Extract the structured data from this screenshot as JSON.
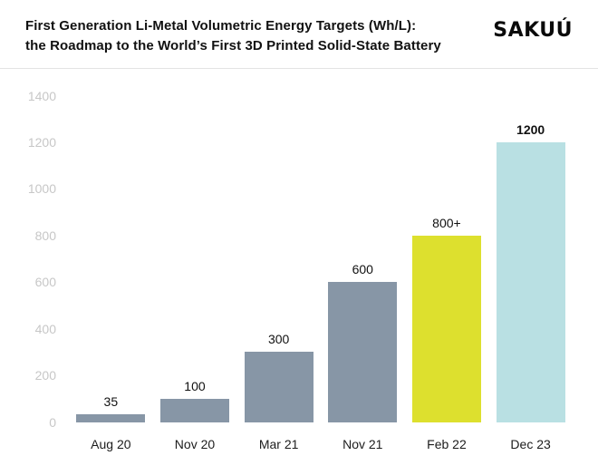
{
  "header": {
    "title_line1": "First Generation Li-Metal Volumetric Energy Targets (Wh/L):",
    "title_line2": "the Roadmap to the World’s First 3D Printed Solid-State Battery",
    "logo": "SAKUÚ"
  },
  "chart_data": {
    "type": "bar",
    "title": "First Generation Li-Metal Volumetric Energy Targets (Wh/L): the Roadmap to the World’s First 3D Printed Solid-State Battery",
    "categories": [
      "Aug 20",
      "Nov 20",
      "Mar 21",
      "Nov 21",
      "Feb 22",
      "Dec 23"
    ],
    "values": [
      35,
      100,
      300,
      600,
      800,
      1200
    ],
    "value_labels": [
      "35",
      "100",
      "300",
      "600",
      "800+",
      "1200"
    ],
    "emphasized_labels": [
      false,
      false,
      false,
      false,
      false,
      true
    ],
    "bar_colors": [
      "#8796a6",
      "#8796a6",
      "#8796a6",
      "#8796a6",
      "#dde02e",
      "#b9e0e3"
    ],
    "xlabel": "",
    "ylabel": "",
    "ylim": [
      0,
      1400
    ],
    "yticks": [
      0,
      200,
      400,
      600,
      800,
      1000,
      1200,
      1400
    ],
    "grid": false,
    "legend": false,
    "colors": {
      "gray_bar": "#8796a6",
      "yellow_bar": "#dde02e",
      "teal_bar": "#b9e0e3",
      "ytick_text": "#c7c7c7",
      "xtick_text": "#1c1c1c",
      "title_text": "#111111"
    }
  }
}
